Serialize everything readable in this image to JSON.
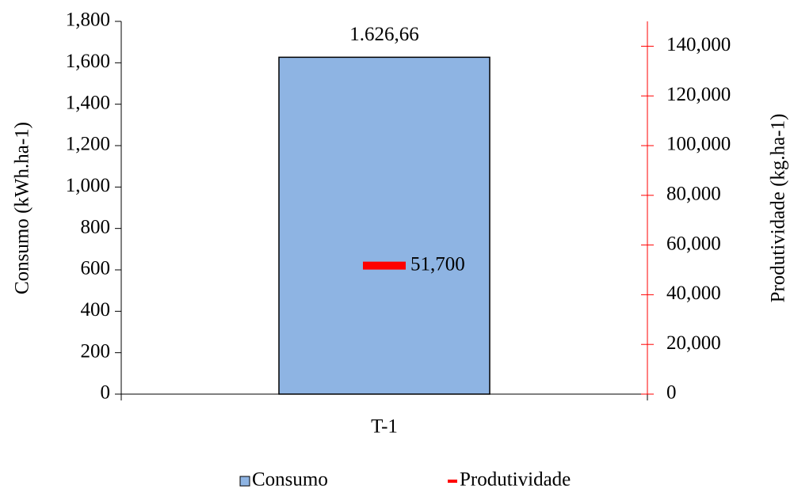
{
  "chart_data": {
    "type": "bar",
    "categories": [
      "T-1"
    ],
    "series": [
      {
        "name": "Consumo",
        "color": "#8eb4e3",
        "values": [
          1626.66
        ],
        "value_labels": [
          "1.626,66"
        ]
      },
      {
        "name": "Produtividade",
        "color": "#ff0000",
        "axis": "y2",
        "values": [
          51700
        ],
        "value_labels": [
          "51,700"
        ]
      }
    ],
    "ylabel": "Consumo (kWh.ha-1)",
    "y2label": "Produtividade (kg.ha-1)",
    "ylim": [
      0,
      1800
    ],
    "yticks": [
      0,
      200,
      400,
      600,
      800,
      {
        "value": 1000,
        "label": "1,000"
      },
      {
        "value": 1200,
        "label": "1,200"
      },
      {
        "value": 1400,
        "label": "1,400"
      },
      {
        "value": 1600,
        "label": "1,600"
      },
      {
        "value": 1800,
        "label": "1,800"
      }
    ],
    "y2lim": [
      0,
      150000
    ],
    "y2ticks": [
      0,
      {
        "value": 20000,
        "label": "20,000"
      },
      {
        "value": 40000,
        "label": "40,000"
      },
      {
        "value": 60000,
        "label": "60,000"
      },
      {
        "value": 80000,
        "label": "80,000"
      },
      {
        "value": 100000,
        "label": "100,000"
      },
      {
        "value": 120000,
        "label": "120,000"
      },
      {
        "value": 140000,
        "label": "140,000"
      }
    ],
    "legend": "bottom"
  }
}
